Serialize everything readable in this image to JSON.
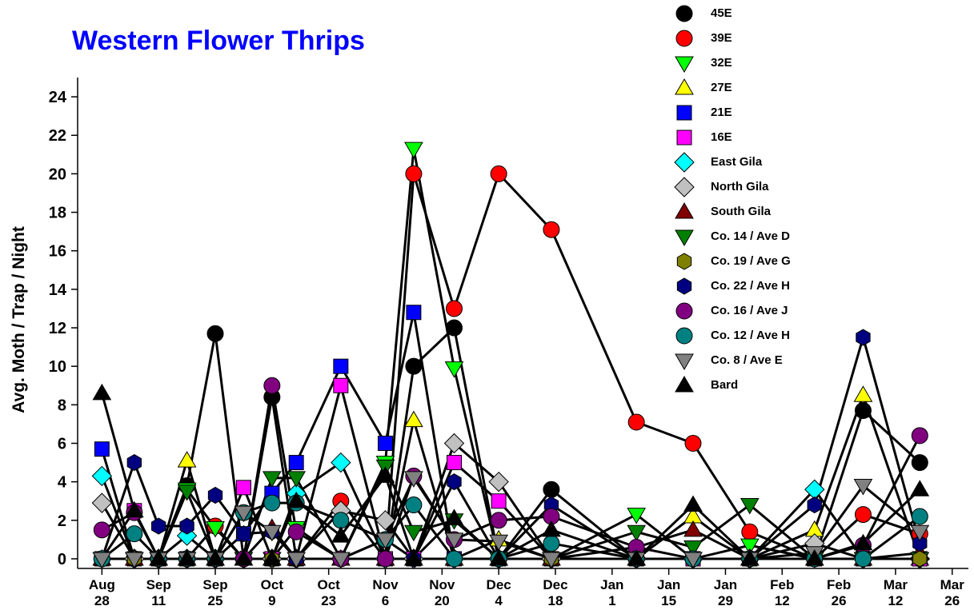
{
  "chart_data": {
    "type": "line",
    "title": "Western Flower Thrips",
    "y_label": "Avg. Moth / Trap / Night",
    "x": [
      0,
      8,
      14,
      21,
      28,
      35,
      42,
      48,
      59,
      70,
      77,
      87,
      98,
      111,
      132,
      146,
      160,
      176,
      188,
      202
    ],
    "xlim": [
      -6,
      214
    ],
    "xticks": [
      {
        "value": 0,
        "label": "Aug 28"
      },
      {
        "value": 14,
        "label": "Sep 11"
      },
      {
        "value": 28,
        "label": "Sep 25"
      },
      {
        "value": 42,
        "label": "Oct 9"
      },
      {
        "value": 56,
        "label": "Oct 23"
      },
      {
        "value": 70,
        "label": "Nov 6"
      },
      {
        "value": 84,
        "label": "Nov 20"
      },
      {
        "value": 98,
        "label": "Dec 4"
      },
      {
        "value": 112,
        "label": "Dec 18"
      },
      {
        "value": 126,
        "label": "Jan 1"
      },
      {
        "value": 140,
        "label": "Jan 15"
      },
      {
        "value": 154,
        "label": "Jan 29"
      },
      {
        "value": 168,
        "label": "Feb 12"
      },
      {
        "value": 182,
        "label": "Feb 26"
      },
      {
        "value": 196,
        "label": "Mar 12"
      },
      {
        "value": 210,
        "label": "Mar 26"
      }
    ],
    "ylim": [
      -0.5,
      25
    ],
    "yticks": [
      0,
      2,
      4,
      6,
      8,
      10,
      12,
      14,
      16,
      18,
      20,
      22,
      24
    ],
    "line_color": "#000000",
    "series": [
      {
        "name": "45E",
        "color": "#000000",
        "marker": "circle",
        "values": [
          0,
          0,
          0,
          3.8,
          11.7,
          0,
          8.4,
          0,
          0,
          0,
          10,
          12,
          0,
          3.6,
          0,
          0,
          0,
          0,
          7.7,
          5.0
        ]
      },
      {
        "name": "39E",
        "color": "#ff0000",
        "marker": "circle",
        "values": [
          0,
          0,
          0,
          0,
          1.7,
          0,
          0,
          0,
          3.0,
          0,
          20,
          13,
          20,
          17.1,
          7.1,
          6.0,
          1.4,
          0,
          2.3,
          1.3
        ]
      },
      {
        "name": "32E",
        "color": "#00ff00",
        "marker": "triangle-down",
        "values": [
          0,
          0,
          0,
          3.6,
          1.6,
          0,
          0,
          1.6,
          0,
          5,
          21.3,
          9.9,
          0,
          0,
          2.3,
          0,
          0.7,
          0,
          0,
          0
        ]
      },
      {
        "name": "27E",
        "color": "#ffff00",
        "marker": "triangle-up",
        "values": [
          0,
          0,
          0,
          5.1,
          0,
          0,
          0,
          0,
          0,
          0,
          7.2,
          0,
          1.0,
          0,
          0,
          2.2,
          0,
          1.5,
          8.5,
          0
        ]
      },
      {
        "name": "21E",
        "color": "#0000ff",
        "marker": "square",
        "values": [
          5.7,
          0,
          0,
          0,
          0,
          1.3,
          3.4,
          5.0,
          10,
          6,
          12.8,
          0,
          0,
          0,
          0,
          0,
          0,
          0,
          0,
          0
        ]
      },
      {
        "name": "16E",
        "color": "#ff00ff",
        "marker": "square",
        "values": [
          0,
          2.5,
          0,
          0,
          0,
          3.7,
          0,
          0,
          9,
          0,
          0,
          5,
          3,
          0,
          0,
          0,
          0,
          0,
          0,
          0
        ]
      },
      {
        "name": "East Gila",
        "color": "#00ffff",
        "marker": "diamond",
        "values": [
          4.3,
          0,
          0,
          1.2,
          0,
          0,
          0,
          3.4,
          5,
          0,
          0,
          0,
          0,
          0,
          0,
          0,
          0,
          3.6,
          0,
          0
        ]
      },
      {
        "name": "North Gila",
        "color": "#c0c0c0",
        "marker": "diamond",
        "values": [
          2.9,
          0,
          0,
          0,
          0,
          0,
          0,
          0,
          2.5,
          2.0,
          0,
          6.0,
          4.0,
          0,
          0,
          0,
          0,
          0.8,
          0,
          0
        ]
      },
      {
        "name": "South Gila",
        "color": "#800000",
        "marker": "triangle-up",
        "values": [
          0,
          0,
          0,
          0,
          0,
          0,
          1.6,
          0,
          0,
          0,
          0,
          0,
          0,
          0,
          0.6,
          1.5,
          0,
          0,
          0,
          0.3
        ]
      },
      {
        "name": "Co. 14 / Ave D",
        "color": "#008000",
        "marker": "triangle-down",
        "values": [
          0,
          0,
          0,
          3.5,
          0,
          0,
          4.2,
          4.2,
          0,
          4.8,
          1.4,
          2.0,
          0,
          0,
          1.4,
          0.6,
          2.8,
          0,
          0,
          0
        ]
      },
      {
        "name": "Co. 19 / Ave G",
        "color": "#808000",
        "marker": "hexagon",
        "values": [
          0,
          0,
          0,
          0,
          0,
          0,
          0,
          0,
          0,
          0,
          0,
          0,
          0,
          0,
          0,
          0,
          0,
          0,
          0,
          0
        ]
      },
      {
        "name": "Co. 22 / Ave H",
        "color": "#000080",
        "marker": "hexagon",
        "values": [
          0,
          5,
          1.7,
          1.7,
          3.3,
          1.3,
          1.4,
          0,
          0,
          1.0,
          0,
          4.0,
          0,
          2.8,
          0,
          0,
          0,
          2.8,
          11.5,
          0.8
        ]
      },
      {
        "name": "Co. 16 / Ave J",
        "color": "#800080",
        "marker": "circle",
        "values": [
          1.5,
          2.4,
          0,
          0,
          0,
          0,
          9,
          1.4,
          0,
          0,
          4.3,
          1.0,
          2.0,
          2.2,
          0.6,
          0,
          0,
          0,
          0.7,
          6.4
        ]
      },
      {
        "name": "Co. 12 / Ave H",
        "color": "#008080",
        "marker": "circle",
        "values": [
          0,
          1.3,
          0,
          0,
          0,
          2.4,
          2.9,
          2.9,
          2.0,
          1.0,
          2.8,
          0,
          0,
          0.8,
          0,
          0,
          0,
          0,
          0,
          2.2
        ]
      },
      {
        "name": "Co. 8 / Ave E",
        "color": "#808080",
        "marker": "triangle-down",
        "values": [
          0,
          0,
          0,
          0,
          0,
          2.4,
          1.4,
          0,
          0,
          1.0,
          4.2,
          1.0,
          0.9,
          0,
          0,
          0,
          0,
          0.3,
          3.8,
          1.4
        ]
      },
      {
        "name": "Bard",
        "color": "#000000",
        "marker": "triangle-up",
        "values": [
          8.6,
          2.5,
          0,
          0,
          0,
          0,
          0,
          3.0,
          1.2,
          4.3,
          0,
          2.1,
          0,
          1.5,
          0,
          2.8,
          0,
          0,
          0.8,
          3.6
        ]
      }
    ]
  }
}
